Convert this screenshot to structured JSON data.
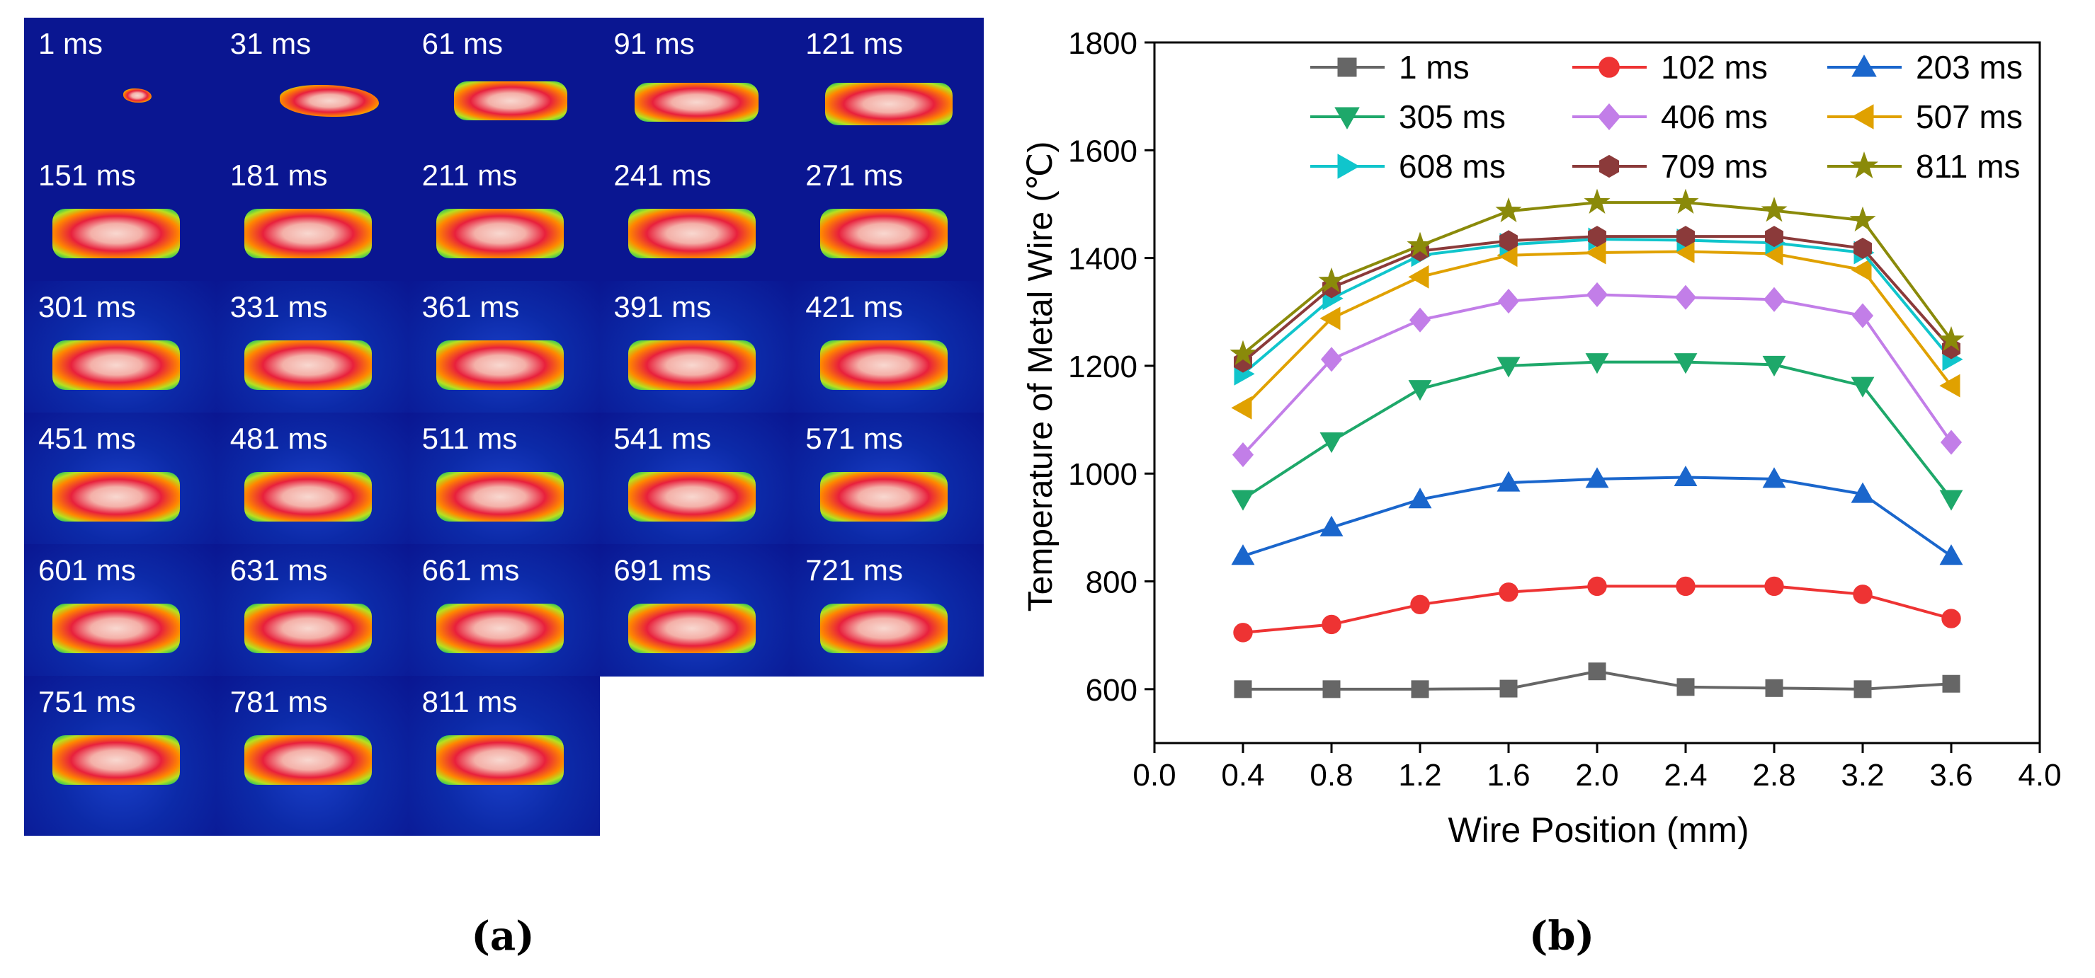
{
  "panel_a": {
    "caption": "(a)",
    "frames": [
      "1 ms",
      "31 ms",
      "61 ms",
      "91 ms",
      "121 ms",
      "151 ms",
      "181 ms",
      "211 ms",
      "241 ms",
      "271 ms",
      "301 ms",
      "331 ms",
      "361 ms",
      "391 ms",
      "421 ms",
      "451 ms",
      "481 ms",
      "511 ms",
      "541 ms",
      "571 ms",
      "601 ms",
      "631 ms",
      "661 ms",
      "691 ms",
      "721 ms",
      "751 ms",
      "781 ms",
      "811 ms"
    ]
  },
  "panel_b": {
    "caption": "(b)"
  },
  "chart_data": {
    "type": "line",
    "title": "",
    "xlabel": "Wire Position (mm)",
    "ylabel": "Temperature of Metal Wire (℃)",
    "xlim": [
      0.0,
      4.0
    ],
    "ylim": [
      500,
      1800
    ],
    "xticks": [
      "0.0",
      "0.4",
      "0.8",
      "1.2",
      "1.6",
      "2.0",
      "2.4",
      "2.8",
      "3.2",
      "3.6",
      "4.0"
    ],
    "yticks": [
      "600",
      "800",
      "1000",
      "1200",
      "1400",
      "1600",
      "1800"
    ],
    "x": [
      0.4,
      0.8,
      1.2,
      1.6,
      2.0,
      2.4,
      2.8,
      3.2,
      3.6
    ],
    "legend_position": "top",
    "series": [
      {
        "name": "1 ms",
        "color": "#666666",
        "marker": "square",
        "values": [
          600,
          600,
          600,
          601,
          633,
          604,
          602,
          600,
          610
        ]
      },
      {
        "name": "102 ms",
        "color": "#ee3333",
        "marker": "circle",
        "values": [
          705,
          720,
          757,
          780,
          791,
          791,
          791,
          776,
          731
        ]
      },
      {
        "name": "203 ms",
        "color": "#1a66cc",
        "marker": "triangle",
        "values": [
          847,
          900,
          952,
          983,
          990,
          993,
          990,
          962,
          847
        ]
      },
      {
        "name": "305 ms",
        "color": "#1ea86a",
        "marker": "triangle-down",
        "values": [
          953,
          1060,
          1157,
          1200,
          1207,
          1207,
          1202,
          1163,
          953
        ]
      },
      {
        "name": "406 ms",
        "color": "#c27ee8",
        "marker": "diamond",
        "values": [
          1035,
          1212,
          1285,
          1320,
          1332,
          1327,
          1323,
          1293,
          1058
        ]
      },
      {
        "name": "507 ms",
        "color": "#e0a100",
        "marker": "triangle-left",
        "values": [
          1122,
          1288,
          1365,
          1405,
          1410,
          1412,
          1408,
          1378,
          1163
        ]
      },
      {
        "name": "608 ms",
        "color": "#10c5cc",
        "marker": "triangle-right",
        "values": [
          1185,
          1325,
          1405,
          1425,
          1435,
          1433,
          1428,
          1410,
          1212
        ]
      },
      {
        "name": "709 ms",
        "color": "#8b3a3a",
        "marker": "hexagon",
        "values": [
          1207,
          1345,
          1413,
          1432,
          1440,
          1440,
          1440,
          1418,
          1232
        ]
      },
      {
        "name": "811 ms",
        "color": "#8a8a0a",
        "marker": "star",
        "values": [
          1222,
          1357,
          1423,
          1487,
          1503,
          1503,
          1488,
          1470,
          1248
        ]
      }
    ]
  }
}
